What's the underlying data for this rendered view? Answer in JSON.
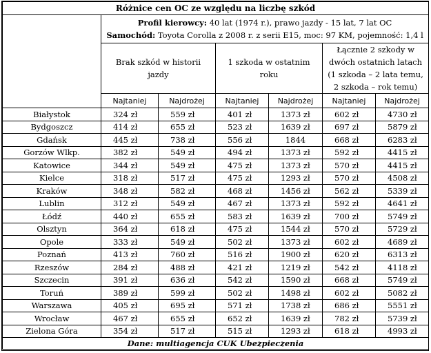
{
  "title": "Różnice cen OC ze względu na liczbę szkód",
  "profile": {
    "driver_label": "Profil kierowcy:",
    "driver_text": " 40 lat (1974 r.), prawo jazdy - 15 lat, 7 lat OC",
    "car_label": "Samochód:",
    "car_text": " Toyota Corolla z 2008 r. z serii E15, moc: 97 KM, pojemność: 1,4 l"
  },
  "groups": [
    {
      "label": "Brak szkód w historii jazdy"
    },
    {
      "label": "1 szkoda w ostatnim roku"
    },
    {
      "label": "Łącznie 2 szkody w dwóch ostatnich latach (1 szkoda – 2 lata temu, 2 szkoda – rok temu)"
    }
  ],
  "sub_headers": [
    "Najtaniej",
    "Najdrożej",
    "Najtaniej",
    "Najdrożej",
    "Najtaniej",
    "Najdrożej"
  ],
  "rows": [
    {
      "city": "Białystok",
      "v": [
        "324  zł",
        "559 zł",
        "401 zł",
        "1373 zł",
        "602 zł",
        "4730 zł"
      ]
    },
    {
      "city": "Bydgoszcz",
      "v": [
        "414 zł",
        "655 zł",
        "523 zł",
        "1639 zł",
        "697 zł",
        "5879 zł"
      ]
    },
    {
      "city": "Gdańsk",
      "v": [
        "445 zł",
        "738 zł",
        "556 zł",
        "1844",
        "668 zł",
        "6283 zł"
      ]
    },
    {
      "city": "Gorzów Wlkp.",
      "v": [
        "382 zł",
        "549 zł",
        "494 zł",
        "1373 zł",
        "592 zł",
        "4415 zł"
      ]
    },
    {
      "city": "Katowice",
      "v": [
        "344 zł",
        "549 zł",
        "475 zł",
        "1373 zł",
        "570 zł",
        "4415 zł"
      ]
    },
    {
      "city": "Kielce",
      "v": [
        "318 zł",
        "517 zł",
        "475 zł",
        "1293 zł",
        "570 zł",
        "4508 zł"
      ]
    },
    {
      "city": "Kraków",
      "v": [
        "348 zł",
        "582 zł",
        "468 zł",
        "1456 zł",
        "562 zł",
        "5339 zł"
      ]
    },
    {
      "city": "Lublin",
      "v": [
        "312 zł",
        "549 zł",
        "467 zł",
        "1373 zł",
        "592 zł",
        "4641 zł"
      ]
    },
    {
      "city": "Łódź",
      "v": [
        "440 zł",
        "655 zł",
        "583 zł",
        "1639 zł",
        "700 zł",
        "5749 zł"
      ]
    },
    {
      "city": "Olsztyn",
      "v": [
        "364 zł",
        "618 zł",
        "475 zł",
        "1544 zł",
        "570 zł",
        "5729 zł"
      ]
    },
    {
      "city": "Opole",
      "v": [
        "333 zł",
        "549 zł",
        "502 zł",
        "1373 zł",
        "602 zł",
        "4689 zł"
      ]
    },
    {
      "city": "Poznań",
      "v": [
        "413 zł",
        "760 zł",
        "516 zł",
        "1900 zł",
        "620 zł",
        "6313 zł"
      ]
    },
    {
      "city": "Rzeszów",
      "v": [
        "284 zł",
        "488 zł",
        "421 zł",
        "1219 zł",
        "542 zł",
        "4118 zł"
      ]
    },
    {
      "city": "Szczecin",
      "v": [
        "391 zł",
        "636 zł",
        "542 zł",
        "1590 zł",
        "668 zł",
        "5749 zł"
      ]
    },
    {
      "city": "Toruń",
      "v": [
        "389 zł",
        "599 zł",
        "502 zł",
        "1498 zł",
        "602 zł",
        "5082 zł"
      ]
    },
    {
      "city": "Warszawa",
      "v": [
        "405 zł",
        "695 zł",
        "571 zł",
        "1738 zł",
        "686 zł",
        "5551 zł"
      ]
    },
    {
      "city": "Wrocław",
      "v": [
        "467 zł",
        "655 zł",
        "652 zł",
        "1639 zł",
        "782 zł",
        "5739 zł"
      ]
    },
    {
      "city": "Zielona Góra",
      "v": [
        "354 zł",
        "517 zł",
        "515 zł",
        "1293 zł",
        "618 zł",
        "4993 zł"
      ]
    }
  ],
  "footer": "Dane: multiagencja CUK Ubezpieczenia"
}
